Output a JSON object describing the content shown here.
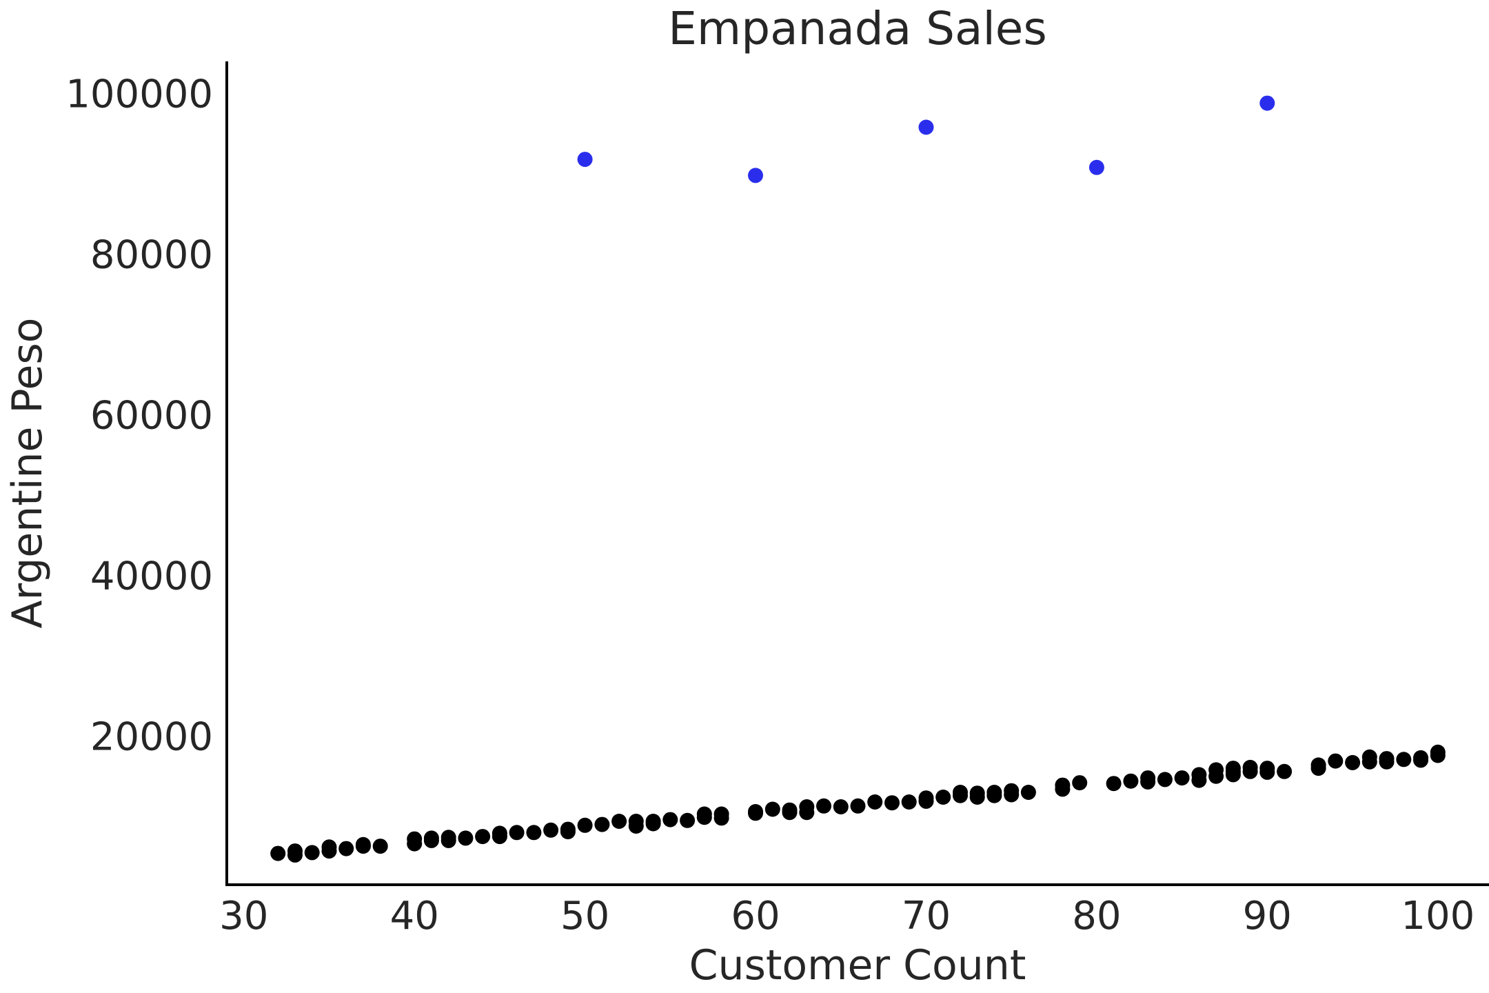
{
  "chart_data": {
    "type": "scatter",
    "title": "Empanada Sales",
    "xlabel": "Customer Count",
    "ylabel": "Argentine Peso",
    "xlim": [
      29,
      103
    ],
    "ylim": [
      1500,
      104000
    ],
    "xticks": [
      30,
      40,
      50,
      60,
      70,
      80,
      90,
      100
    ],
    "yticks": [
      20000,
      40000,
      60000,
      80000,
      100000
    ],
    "grid": false,
    "legend": "none",
    "series": [
      {
        "color": "#000000",
        "points": [
          [
            32,
            5400
          ],
          [
            33,
            5200
          ],
          [
            33,
            5700
          ],
          [
            34,
            5500
          ],
          [
            35,
            5700
          ],
          [
            35,
            6200
          ],
          [
            36,
            6000
          ],
          [
            37,
            6500
          ],
          [
            37,
            6300
          ],
          [
            38,
            6300
          ],
          [
            40,
            6600
          ],
          [
            40,
            7200
          ],
          [
            41,
            7000
          ],
          [
            41,
            7300
          ],
          [
            42,
            7000
          ],
          [
            42,
            7400
          ],
          [
            43,
            7300
          ],
          [
            44,
            7500
          ],
          [
            45,
            7500
          ],
          [
            45,
            7900
          ],
          [
            46,
            8000
          ],
          [
            47,
            8000
          ],
          [
            48,
            8300
          ],
          [
            49,
            8100
          ],
          [
            49,
            8400
          ],
          [
            50,
            8900
          ],
          [
            51,
            9000
          ],
          [
            52,
            9400
          ],
          [
            53,
            8800
          ],
          [
            53,
            9400
          ],
          [
            54,
            9100
          ],
          [
            54,
            9400
          ],
          [
            55,
            9600
          ],
          [
            56,
            9500
          ],
          [
            57,
            9900
          ],
          [
            57,
            10300
          ],
          [
            58,
            9800
          ],
          [
            58,
            10300
          ],
          [
            60,
            10400
          ],
          [
            60,
            10600
          ],
          [
            61,
            10900
          ],
          [
            62,
            10500
          ],
          [
            62,
            10800
          ],
          [
            63,
            10500
          ],
          [
            63,
            11200
          ],
          [
            64,
            11300
          ],
          [
            65,
            11200
          ],
          [
            66,
            11300
          ],
          [
            67,
            11800
          ],
          [
            68,
            11700
          ],
          [
            69,
            11800
          ],
          [
            70,
            11900
          ],
          [
            70,
            12300
          ],
          [
            71,
            12400
          ],
          [
            72,
            12600
          ],
          [
            72,
            13000
          ],
          [
            73,
            12400
          ],
          [
            73,
            12900
          ],
          [
            74,
            12600
          ],
          [
            74,
            13000
          ],
          [
            75,
            12700
          ],
          [
            75,
            13200
          ],
          [
            76,
            13000
          ],
          [
            78,
            13400
          ],
          [
            78,
            13900
          ],
          [
            79,
            14200
          ],
          [
            81,
            14100
          ],
          [
            82,
            14400
          ],
          [
            83,
            14300
          ],
          [
            83,
            14800
          ],
          [
            84,
            14600
          ],
          [
            85,
            14800
          ],
          [
            86,
            14500
          ],
          [
            86,
            15200
          ],
          [
            87,
            15000
          ],
          [
            87,
            15800
          ],
          [
            88,
            15200
          ],
          [
            88,
            15600
          ],
          [
            88,
            16000
          ],
          [
            89,
            15600
          ],
          [
            89,
            16100
          ],
          [
            90,
            15500
          ],
          [
            90,
            16000
          ],
          [
            91,
            15600
          ],
          [
            93,
            16000
          ],
          [
            93,
            16400
          ],
          [
            94,
            16900
          ],
          [
            95,
            16700
          ],
          [
            96,
            16800
          ],
          [
            96,
            17400
          ],
          [
            97,
            16800
          ],
          [
            97,
            17200
          ],
          [
            98,
            17100
          ],
          [
            99,
            17000
          ],
          [
            99,
            17300
          ],
          [
            100,
            17600
          ],
          [
            100,
            18000
          ]
        ]
      },
      {
        "color": "#2a2eec",
        "points": [
          [
            50,
            91800
          ],
          [
            60,
            89800
          ],
          [
            70,
            95800
          ],
          [
            80,
            90800
          ],
          [
            90,
            98800
          ]
        ]
      }
    ]
  }
}
